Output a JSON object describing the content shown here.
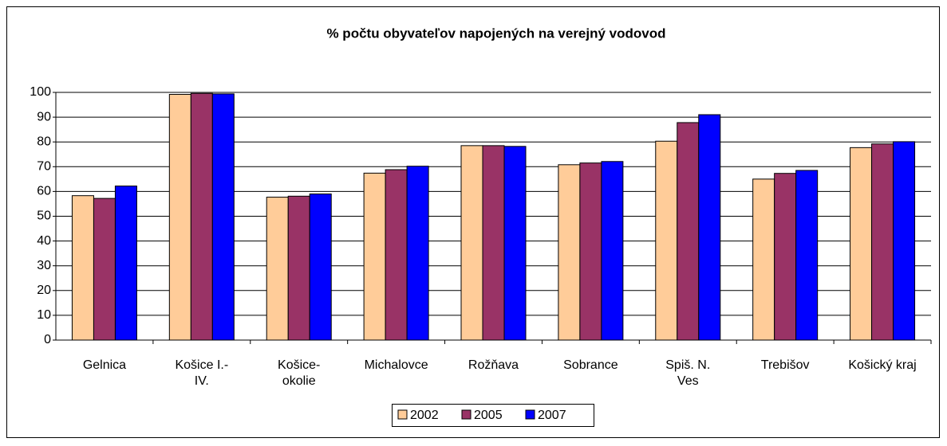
{
  "chart_data": {
    "type": "bar",
    "title": "% počtu obyvateľov napojených na verejný vodovod",
    "categories": [
      "Gelnica",
      "Košice I.-\nIV.",
      "Košice-\nokolie",
      "Michalovce",
      "Rožňava",
      "Sobrance",
      "Spiš. N.\nVes",
      "Trebišov",
      "Košický kraj"
    ],
    "series": [
      {
        "name": "2002",
        "color": "#FFCC99",
        "values": [
          58.3,
          99.2,
          57.7,
          67.4,
          78.5,
          70.8,
          80.3,
          65.0,
          77.7
        ]
      },
      {
        "name": "2005",
        "color": "#993366",
        "values": [
          57.2,
          99.6,
          58.1,
          68.8,
          78.5,
          71.5,
          87.8,
          67.3,
          79.2
        ]
      },
      {
        "name": "2007",
        "color": "#0000FF",
        "values": [
          62.2,
          99.4,
          59.0,
          70.2,
          78.2,
          72.1,
          91.0,
          68.5,
          80.1
        ]
      }
    ],
    "ylim": [
      0,
      100
    ],
    "yticks": [
      0,
      10,
      20,
      30,
      40,
      50,
      60,
      70,
      80,
      90,
      100
    ],
    "grid": true,
    "legend": "bottom"
  }
}
